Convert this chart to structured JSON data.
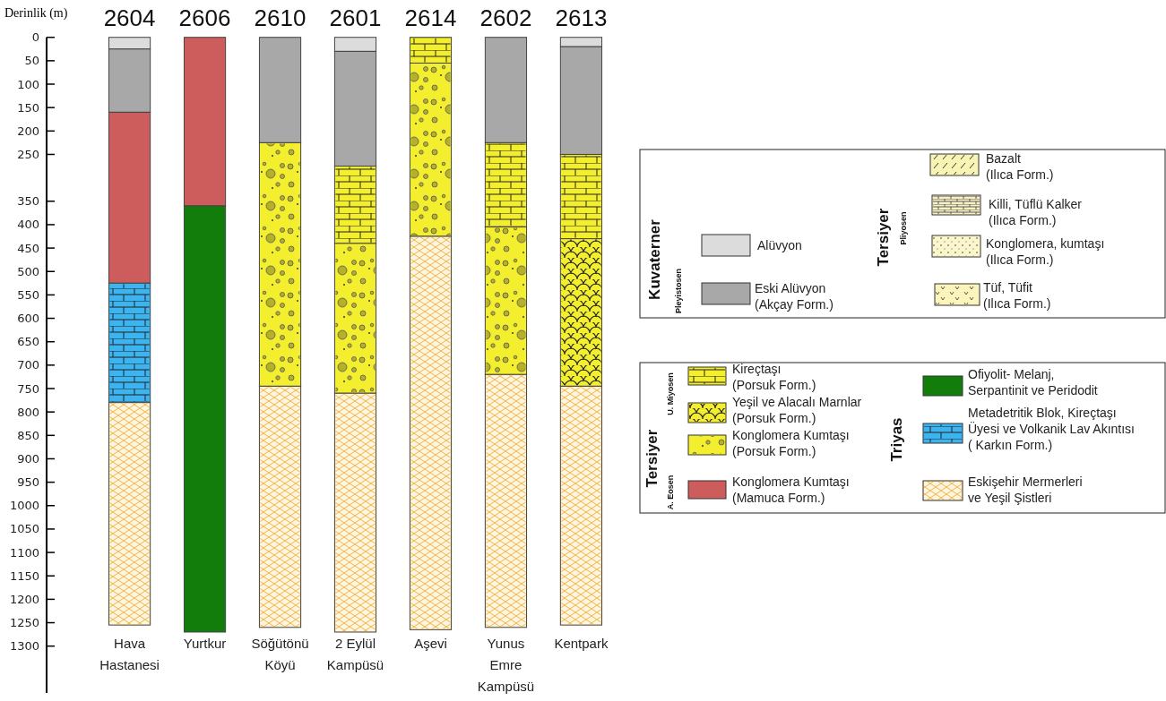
{
  "chart_data": {
    "type": "bar",
    "stacked": true,
    "ylabel": "Derinlik (m)",
    "categories": [
      "Hava Hastanesi",
      "Yurtkur",
      "Söğütönü Köyü",
      "2 Eylül Kampüsü",
      "Aşevi",
      "Yunus Emre Kampüsü",
      "Kentpark"
    ],
    "ylim": [
      1400,
      0
    ],
    "yticks": [
      0,
      50,
      100,
      150,
      200,
      250,
      350,
      400,
      450,
      500,
      550,
      600,
      650,
      700,
      750,
      800,
      850,
      900,
      950,
      1000,
      1050,
      1100,
      1150,
      1200,
      1250,
      1300
    ],
    "legend": "right",
    "series": [
      {
        "name": "Alüvyon",
        "color": "#dcdcdc",
        "values": [
          25,
          null,
          null,
          30,
          null,
          null,
          20
        ]
      },
      {
        "name": "Eski Alüvyon (Akçay Form.)",
        "color": "#a8a8a8",
        "values": [
          135,
          null,
          225,
          245,
          null,
          225,
          230
        ]
      },
      {
        "name": "Kireçtaşı (Porsuk Form.)",
        "color": "#f3ef2f",
        "values": [
          null,
          null,
          null,
          165,
          55,
          180,
          180
        ]
      },
      {
        "name": "Konglomera Kumtaşı (Porsuk Form.)",
        "color": "#f3ef2f",
        "values": [
          null,
          null,
          520,
          320,
          370,
          315,
          null
        ]
      },
      {
        "name": "Yeşil ve Alacalı Marnlar (Porsuk Form.)",
        "color": "#f3ef2f",
        "values": [
          null,
          null,
          null,
          null,
          null,
          null,
          315
        ]
      },
      {
        "name": "Konglomera Kumtaşı (Mamuca Form.)",
        "color": "#cd5c5c",
        "values": [
          365,
          360,
          null,
          null,
          null,
          null,
          null
        ]
      },
      {
        "name": "Metadetritik Blok, Kireçtaşı Üyesi ve Volkanik Lav Akıntısı ( Karkın Form.)",
        "color": "#3cb4ef",
        "values": [
          255,
          null,
          null,
          null,
          null,
          null,
          null
        ]
      },
      {
        "name": "Ofiyolit- Melanj, Serpantinit ve Peridodit",
        "color": "#137d0c",
        "values": [
          null,
          910,
          null,
          null,
          null,
          null,
          null
        ]
      },
      {
        "name": "Eskişehir Mermerleri ve Yeşil Şistleri",
        "color": "#fbe6b4",
        "values": [
          475,
          null,
          515,
          510,
          840,
          540,
          510
        ]
      },
      {
        "name": "Bazalt (Ilıca Form.)",
        "color": "#f8f4b4",
        "values": [
          null,
          null,
          null,
          null,
          null,
          null,
          null
        ]
      },
      {
        "name": "Killi, Tüflü Kalker (Ilıca Form.)",
        "color": "#f6f2c6",
        "values": [
          null,
          null,
          null,
          null,
          null,
          null,
          null
        ]
      },
      {
        "name": "Konglomera, kumtaşı (Ilıca Form.)",
        "color": "#fbf6cc",
        "values": [
          null,
          null,
          null,
          null,
          null,
          null,
          null
        ]
      },
      {
        "name": "Tüf, Tüfit (Ilıca Form.)",
        "color": "#fbf5bc",
        "values": [
          null,
          null,
          null,
          null,
          null,
          null,
          null
        ]
      }
    ],
    "annotations": [
      "2604",
      "2606",
      "2610",
      "2601",
      "2614",
      "2602",
      "2613",
      "Kuvaterner",
      "Pleyistosen",
      "Tersiyer",
      "Pliyosen",
      "Tersiyer",
      "U. Miyosen",
      "A. Eosen",
      "Triyas"
    ]
  }
}
